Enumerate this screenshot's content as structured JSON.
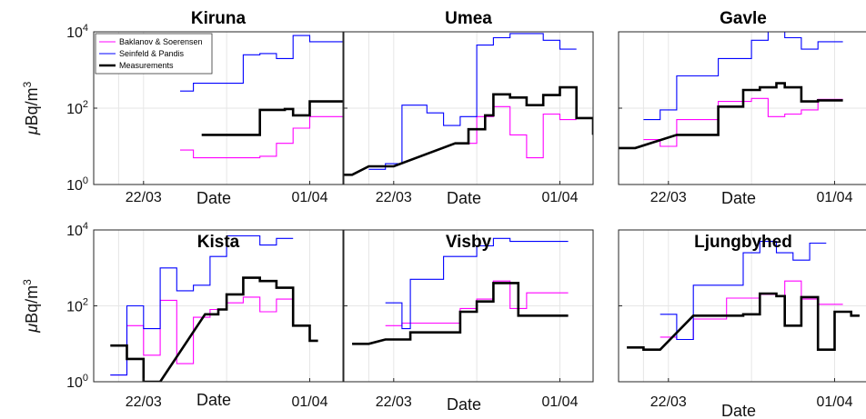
{
  "chart_data": {
    "type": "line",
    "ylabel": "μBq/m³",
    "ylabel_parts": {
      "mu": "μ",
      "main": "Bq/m",
      "sup": "3"
    },
    "xlabel": "Date",
    "x_ticks": [
      "22/03",
      "01/04"
    ],
    "y_scale": "log",
    "ylim": [
      1,
      10000
    ],
    "y_ticks": [
      {
        "base": "10",
        "exp": "0"
      },
      {
        "base": "10",
        "exp": "2"
      },
      {
        "base": "10",
        "exp": "4"
      }
    ],
    "legend": {
      "position": "top-left",
      "panel": "Kiruna",
      "entries": [
        "Baklanov & Soerensen",
        "Seinfeld & Pandis",
        "Measurements"
      ]
    },
    "colors": {
      "Baklanov & Soerensen": "#ff00ff",
      "Seinfeld & Pandis": "#0000ff",
      "Measurements": "#000000",
      "grid": "#e6e6e6",
      "axes": "#262626"
    },
    "panels": [
      {
        "title": "Kiruna",
        "series": [
          {
            "name": "Baklanov & Soerensen",
            "x": [
              24.2,
              25.0,
              25.0,
              29.0,
              29.0,
              30.0,
              30.0,
              31.0,
              31.0,
              32.0,
              32.0,
              34.0
            ],
            "y": [
              8,
              8,
              5,
              5,
              5.5,
              5.5,
              12,
              12,
              30,
              30,
              60,
              60
            ]
          },
          {
            "name": "Seinfeld & Pandis",
            "x": [
              24.2,
              25.0,
              25.0,
              28.0,
              28.0,
              29.0,
              29.0,
              30.0,
              30.0,
              31.0,
              31.0,
              32.0,
              32.0,
              34.0
            ],
            "y": [
              280,
              280,
              450,
              450,
              2500,
              2500,
              2700,
              2700,
              2000,
              2000,
              8000,
              8000,
              5500,
              5500
            ]
          },
          {
            "name": "Measurements",
            "x": [
              25.5,
              29.0,
              29.0,
              30.5,
              30.5,
              31.0,
              31.0,
              32.0,
              32.0,
              34.0
            ],
            "y": [
              20,
              20,
              90,
              90,
              95,
              95,
              65,
              65,
              150,
              150
            ]
          }
        ]
      },
      {
        "title": "Umea",
        "series": [
          {
            "name": "Baklanov & Soerensen",
            "x": [
              26.0,
              27.0,
              27.0,
              28.0,
              28.0,
              29.0,
              29.0,
              30.0,
              30.0,
              31.0,
              31.0,
              32.0,
              32.0,
              33.0
            ],
            "y": [
              12,
              12,
              60,
              60,
              110,
              110,
              20,
              20,
              5,
              5,
              70,
              70,
              50,
              50
            ]
          },
          {
            "name": "Seinfeld & Pandis",
            "x": [
              20.5,
              21.5,
              21.5,
              22.5,
              22.5,
              24.0,
              24.0,
              25.0,
              25.0,
              26.0,
              26.0,
              27.0,
              27.0,
              28.0,
              28.0,
              29.0,
              29.0,
              31.0,
              31.0,
              32.0,
              32.0,
              33.0
            ],
            "y": [
              2.5,
              2.5,
              3.5,
              3.5,
              120,
              120,
              75,
              75,
              35,
              35,
              60,
              60,
              4500,
              4500,
              7000,
              7000,
              9000,
              9000,
              6000,
              6000,
              3500,
              3500
            ]
          },
          {
            "name": "Measurements",
            "x": [
              19.0,
              19.5,
              20.5,
              22.0,
              25.7,
              26.5,
              26.5,
              27.5,
              27.5,
              28.0,
              28.0,
              29.0,
              29.0,
              30.0,
              30.0,
              31.0,
              31.0,
              32.0,
              32.0,
              33.0,
              33.0,
              34.0,
              34.0
            ],
            "y": [
              1.8,
              1.8,
              3.0,
              3.0,
              12,
              12,
              28,
              28,
              65,
              65,
              230,
              230,
              190,
              190,
              120,
              120,
              220,
              220,
              350,
              350,
              55,
              55,
              20
            ]
          }
        ]
      },
      {
        "title": "Gavle",
        "series": [
          {
            "name": "Baklanov & Soerensen",
            "x": [
              20.5,
              21.5,
              21.5,
              22.5,
              22.5,
              25.0,
              25.0,
              27.0,
              27.0,
              28.0,
              28.0,
              29.0,
              29.0,
              30.0,
              30.0,
              31.0,
              31.0,
              32.5
            ],
            "y": [
              15,
              15,
              10,
              10,
              50,
              50,
              150,
              150,
              180,
              180,
              60,
              60,
              70,
              70,
              90,
              90,
              170,
              170
            ]
          },
          {
            "name": "Seinfeld & Pandis",
            "x": [
              20.5,
              21.5,
              21.5,
              22.5,
              22.5,
              25.0,
              25.0,
              27.0,
              27.0,
              28.0,
              28.0,
              29.0,
              29.0,
              30.0,
              30.0,
              31.0,
              31.0,
              32.5
            ],
            "y": [
              50,
              50,
              90,
              90,
              700,
              700,
              2000,
              2000,
              6000,
              6000,
              10000,
              10000,
              7000,
              7000,
              3500,
              3500,
              5500,
              5500
            ]
          },
          {
            "name": "Measurements",
            "x": [
              19.0,
              20.0,
              22.5,
              25.0,
              25.0,
              26.5,
              26.5,
              27.5,
              27.5,
              28.5,
              28.5,
              29.0,
              29.0,
              30.0,
              30.0,
              31.0,
              31.0,
              32.5
            ],
            "y": [
              9,
              9,
              20,
              20,
              110,
              110,
              300,
              300,
              350,
              350,
              450,
              450,
              350,
              350,
              150,
              150,
              160,
              160
            ]
          }
        ]
      },
      {
        "title": "Kista",
        "series": [
          {
            "name": "Baklanov & Soerensen",
            "x": [
              20.0,
              21.0,
              21.0,
              22.0,
              22.0,
              23.0,
              23.0,
              24.0,
              24.0,
              25.0,
              25.0,
              26.0,
              26.0,
              27.0,
              27.0,
              28.0,
              28.0,
              29.0,
              29.0,
              30.0,
              30.0,
              31.0
            ],
            "y": [
              1.5,
              1.5,
              30,
              30,
              5,
              5,
              140,
              140,
              3,
              3,
              50,
              50,
              80,
              80,
              120,
              120,
              170,
              170,
              70,
              70,
              150,
              150
            ]
          },
          {
            "name": "Seinfeld & Pandis",
            "x": [
              20.0,
              21.0,
              21.0,
              22.0,
              22.0,
              23.0,
              23.0,
              24.0,
              24.0,
              25.0,
              25.0,
              26.0,
              26.0,
              27.0,
              27.0,
              29.0,
              29.0,
              30.0,
              30.0,
              31.0
            ],
            "y": [
              1.5,
              1.5,
              100,
              100,
              25,
              25,
              1000,
              1000,
              250,
              250,
              350,
              350,
              2000,
              2000,
              7000,
              7000,
              4000,
              4000,
              6000,
              6000
            ]
          },
          {
            "name": "Measurements",
            "x": [
              20.0,
              21.0,
              21.0,
              22.0,
              22.0,
              23.0,
              25.7,
              26.5,
              26.5,
              27.0,
              27.0,
              28.0,
              28.0,
              29.0,
              29.0,
              30.0,
              30.0,
              31.0,
              31.0,
              32.0,
              32.0,
              32.5,
              32.5
            ],
            "y": [
              9,
              9,
              4,
              4,
              1,
              1,
              60,
              60,
              80,
              80,
              200,
              200,
              550,
              550,
              450,
              450,
              300,
              300,
              30,
              30,
              12,
              12,
              12
            ]
          }
        ]
      },
      {
        "title": "Visby",
        "series": [
          {
            "name": "Baklanov & Soerensen",
            "x": [
              21.5,
              22.5,
              22.5,
              26.0,
              26.0,
              27.0,
              27.0,
              28.0,
              28.0,
              29.0,
              29.0,
              30.0,
              30.0,
              32.5
            ],
            "y": [
              30,
              30,
              35,
              35,
              85,
              85,
              150,
              150,
              450,
              450,
              85,
              85,
              220,
              220
            ]
          },
          {
            "name": "Seinfeld & Pandis",
            "x": [
              21.5,
              22.5,
              22.5,
              23.0,
              23.0,
              25.0,
              25.0,
              27.0,
              27.0,
              28.0,
              28.0,
              29.0,
              29.0,
              32.5
            ],
            "y": [
              120,
              120,
              25,
              25,
              500,
              500,
              2000,
              2000,
              3800,
              3800,
              6000,
              6000,
              5000,
              5000
            ]
          },
          {
            "name": "Measurements",
            "x": [
              19.5,
              20.5,
              21.5,
              23.0,
              23.0,
              26.0,
              26.0,
              27.0,
              27.0,
              28.0,
              28.0,
              29.5,
              29.5,
              32.5
            ],
            "y": [
              10,
              10,
              13,
              13,
              20,
              20,
              70,
              70,
              130,
              130,
              400,
              400,
              55,
              55
            ]
          }
        ]
      },
      {
        "title": "Ljungbyhed",
        "series": [
          {
            "name": "Baklanov & Soerensen",
            "x": [
              21.5,
              22.5,
              22.5,
              23.5,
              23.5,
              25.5,
              25.5,
              27.5,
              27.5,
              28.5,
              28.5,
              29.0,
              29.0,
              30.0,
              30.0,
              31.0,
              31.0,
              32.5
            ],
            "y": [
              15,
              15,
              13,
              13,
              45,
              45,
              160,
              160,
              200,
              200,
              180,
              180,
              450,
              450,
              150,
              150,
              110,
              110
            ]
          },
          {
            "name": "Seinfeld & Pandis",
            "x": [
              21.5,
              22.5,
              22.5,
              23.5,
              23.5,
              25.5,
              25.5,
              26.5,
              26.5,
              27.5,
              27.5,
              28.5,
              28.5,
              29.5,
              29.5,
              30.5,
              30.5,
              31.5
            ],
            "y": [
              60,
              60,
              13,
              13,
              350,
              350,
              350,
              350,
              2500,
              2500,
              5000,
              5000,
              2500,
              2500,
              1600,
              1600,
              4500,
              4500
            ]
          },
          {
            "name": "Measurements",
            "x": [
              19.5,
              20.5,
              20.5,
              21.5,
              23.5,
              26.5,
              26.5,
              27.5,
              27.5,
              28.5,
              28.5,
              29.0,
              29.0,
              30.0,
              30.0,
              31.0,
              31.0,
              32.0,
              32.0,
              33.0,
              33.0,
              33.5
            ],
            "y": [
              8,
              8,
              7,
              7,
              55,
              55,
              60,
              60,
              210,
              210,
              180,
              180,
              30,
              30,
              170,
              170,
              7,
              7,
              70,
              70,
              55,
              55
            ]
          }
        ]
      }
    ]
  }
}
